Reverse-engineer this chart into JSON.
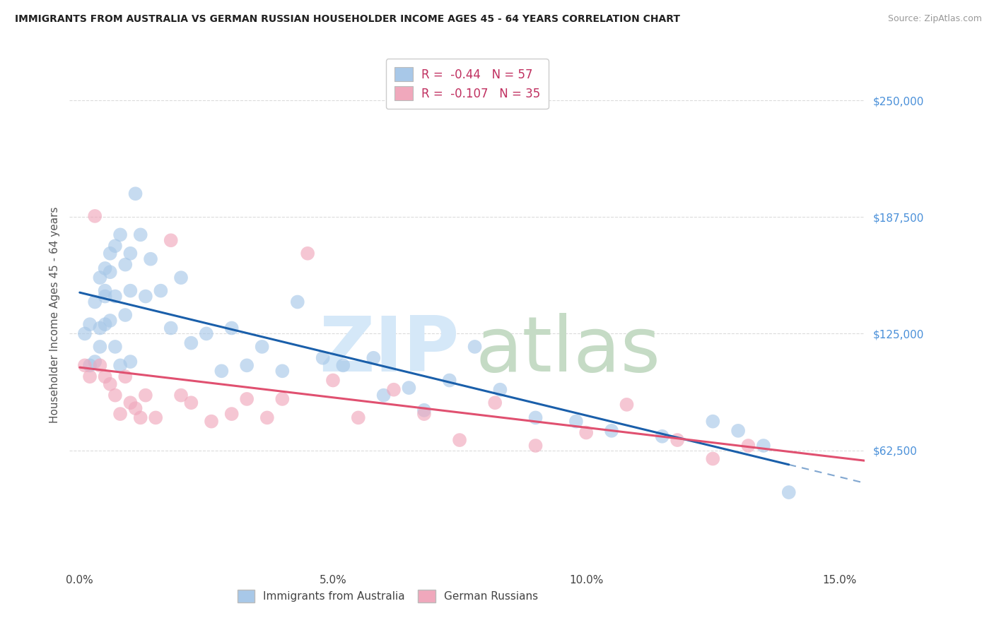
{
  "title": "IMMIGRANTS FROM AUSTRALIA VS GERMAN RUSSIAN HOUSEHOLDER INCOME AGES 45 - 64 YEARS CORRELATION CHART",
  "source": "Source: ZipAtlas.com",
  "ylabel": "Householder Income Ages 45 - 64 years",
  "ytick_labels": [
    "$62,500",
    "$125,000",
    "$187,500",
    "$250,000"
  ],
  "ytick_values": [
    62500,
    125000,
    187500,
    250000
  ],
  "xlim": [
    -0.002,
    0.155
  ],
  "ylim": [
    0,
    270000
  ],
  "R_australia": -0.44,
  "N_australia": 57,
  "R_german_russian": -0.107,
  "N_german_russian": 35,
  "color_australia": "#a8c8e8",
  "color_german_russian": "#f0a8bc",
  "line_color_australia": "#1a5faa",
  "line_color_german_russian": "#e05070",
  "background_color": "#ffffff",
  "grid_color": "#cccccc",
  "australia_x": [
    0.001,
    0.002,
    0.002,
    0.003,
    0.003,
    0.004,
    0.004,
    0.004,
    0.005,
    0.005,
    0.005,
    0.005,
    0.006,
    0.006,
    0.006,
    0.007,
    0.007,
    0.007,
    0.008,
    0.008,
    0.009,
    0.009,
    0.01,
    0.01,
    0.01,
    0.011,
    0.012,
    0.013,
    0.014,
    0.016,
    0.018,
    0.02,
    0.022,
    0.025,
    0.028,
    0.03,
    0.033,
    0.036,
    0.04,
    0.043,
    0.048,
    0.052,
    0.058,
    0.06,
    0.065,
    0.068,
    0.073,
    0.078,
    0.083,
    0.09,
    0.098,
    0.105,
    0.115,
    0.125,
    0.13,
    0.135,
    0.14
  ],
  "australia_y": [
    125000,
    130000,
    108000,
    142000,
    110000,
    128000,
    118000,
    155000,
    148000,
    160000,
    130000,
    145000,
    168000,
    132000,
    158000,
    172000,
    118000,
    145000,
    178000,
    108000,
    162000,
    135000,
    168000,
    148000,
    110000,
    200000,
    178000,
    145000,
    165000,
    148000,
    128000,
    155000,
    120000,
    125000,
    105000,
    128000,
    108000,
    118000,
    105000,
    142000,
    112000,
    108000,
    112000,
    92000,
    96000,
    84000,
    100000,
    118000,
    95000,
    80000,
    78000,
    73000,
    70000,
    78000,
    73000,
    65000,
    40000
  ],
  "german_russian_x": [
    0.001,
    0.002,
    0.003,
    0.004,
    0.005,
    0.006,
    0.007,
    0.008,
    0.009,
    0.01,
    0.011,
    0.012,
    0.013,
    0.015,
    0.018,
    0.02,
    0.022,
    0.026,
    0.03,
    0.033,
    0.037,
    0.04,
    0.045,
    0.05,
    0.055,
    0.062,
    0.068,
    0.075,
    0.082,
    0.09,
    0.1,
    0.108,
    0.118,
    0.125,
    0.132
  ],
  "german_russian_y": [
    108000,
    102000,
    188000,
    108000,
    102000,
    98000,
    92000,
    82000,
    102000,
    88000,
    85000,
    80000,
    92000,
    80000,
    175000,
    92000,
    88000,
    78000,
    82000,
    90000,
    80000,
    90000,
    168000,
    100000,
    80000,
    95000,
    82000,
    68000,
    88000,
    65000,
    72000,
    87000,
    68000,
    58000,
    65000
  ],
  "legend_label_australia": "Immigrants from Australia",
  "legend_label_german_russian": "German Russians"
}
